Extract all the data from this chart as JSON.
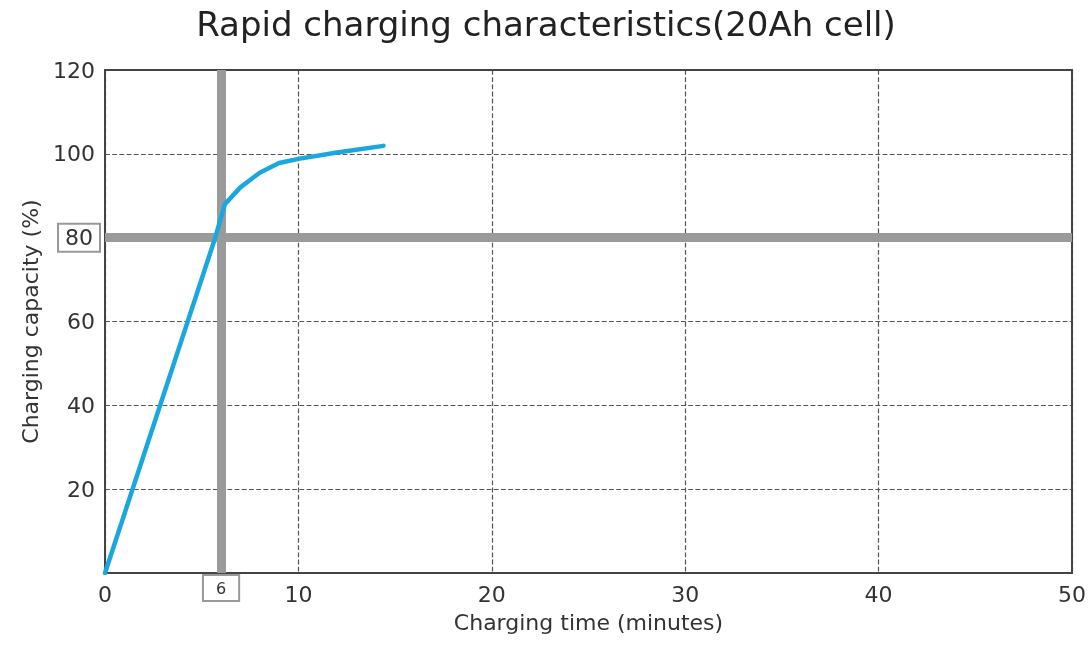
{
  "chart_data": {
    "type": "line",
    "title": "Rapid charging characteristics(20Ah cell)",
    "xlabel": "Charging time (minutes)",
    "ylabel": "Charging capacity (%)",
    "series": [
      {
        "color": "#1aa7e0",
        "x": [
          0,
          5.7,
          6.2,
          7,
          8,
          9,
          10,
          12,
          14.4
        ],
        "values": [
          0,
          80,
          88,
          92,
          95.5,
          97.8,
          98.8,
          100.3,
          101.9
        ]
      }
    ],
    "xlim": [
      0,
      50
    ],
    "xticks": [
      0,
      10,
      20,
      30,
      40,
      50
    ],
    "ylim": [
      0,
      120
    ],
    "yticks": [
      {
        "value": 0,
        "label": null
      },
      20,
      40,
      60,
      {
        "value": 80,
        "label": null
      },
      100,
      120
    ],
    "ref_lines": [
      {
        "axis": "x",
        "value": 6,
        "label": "6",
        "color": "#9a9a9a"
      },
      {
        "axis": "y",
        "value": 80,
        "label": "80",
        "color": "#9a9a9a"
      }
    ],
    "grid": true,
    "marker": "none",
    "line_style": "solid"
  }
}
